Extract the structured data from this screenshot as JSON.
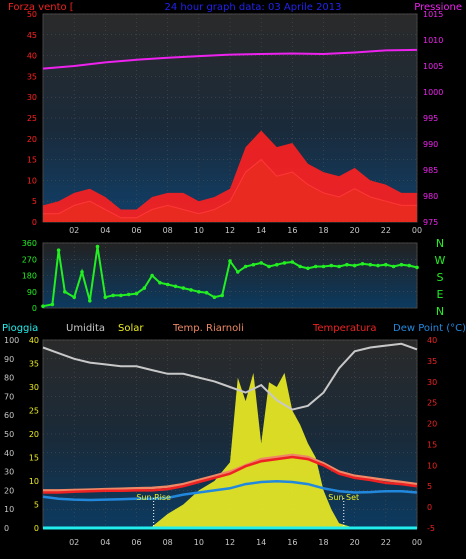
{
  "colors": {
    "wind": "#ff2020",
    "gust": "#ffffff",
    "windAvg": "#228822",
    "pressure": "#ee22ee",
    "direction": "#22ee22",
    "humidity": "#c8c8c8",
    "solar": "#eeee22",
    "temperature": "#ee2222",
    "apparent": "#ee8866",
    "dewpoint": "#2288dd",
    "rain": "#22eeee",
    "title": "#2222ee",
    "hourLabel": "#c8c8c8"
  },
  "header": {
    "left": "Forza vento [",
    "center": "24 hour graph data:  03 Aprile 2013",
    "right": "Pressione"
  },
  "compass": [
    "N",
    "W",
    "S",
    "E",
    "N"
  ],
  "legend": {
    "rain": "Pioggia",
    "humidity": "Umidita",
    "solar": "Solar",
    "apparent": "Temp. Riarnoli",
    "temperature": "Temperatura",
    "dewpoint": "Dew Point (°C)"
  },
  "annotations": {
    "sunrise": "Sun Rise",
    "sunset": "Sun Set"
  },
  "hours": [
    "02",
    "04",
    "06",
    "08",
    "10",
    "12",
    "14",
    "16",
    "18",
    "20",
    "22",
    "00"
  ],
  "hour_values": [
    2,
    4,
    6,
    8,
    10,
    12,
    14,
    16,
    18,
    20,
    22,
    24
  ],
  "chart_data": [
    {
      "type": "line",
      "name": "wind-pressure",
      "title": "24 hour graph data:  03 Aprile 2013",
      "x_range": [
        0,
        24
      ],
      "ylabel_left": "Forza vento [",
      "ylim_left": [
        0,
        50
      ],
      "yticks_left": [
        0,
        5,
        10,
        15,
        20,
        25,
        30,
        35,
        40,
        45,
        50
      ],
      "ylabel_right": "Pressione",
      "ylim_right": [
        975,
        1015
      ],
      "yticks_right": [
        975,
        980,
        985,
        990,
        995,
        1000,
        1005,
        1010,
        1015
      ],
      "series": [
        {
          "name": "Pressione",
          "axis": "right",
          "x": [
            0,
            2,
            4,
            6,
            8,
            10,
            12,
            14,
            16,
            18,
            20,
            22,
            24
          ],
          "values": [
            1004.5,
            1005.0,
            1005.7,
            1006.2,
            1006.6,
            1006.9,
            1007.2,
            1007.3,
            1007.4,
            1007.3,
            1007.6,
            1008.0,
            1008.1
          ]
        },
        {
          "name": "wind-speed",
          "axis": "left",
          "x": [
            0,
            1,
            2,
            3,
            4,
            5,
            6,
            7,
            8,
            9,
            10,
            11,
            12,
            13,
            14,
            15,
            16,
            17,
            18,
            19,
            20,
            21,
            22,
            23,
            24
          ],
          "values": [
            2,
            2,
            4,
            5,
            3,
            1,
            1,
            3,
            4,
            3,
            2,
            3,
            5,
            12,
            15,
            11,
            12,
            9,
            7,
            6,
            8,
            6,
            5,
            4,
            4
          ]
        },
        {
          "name": "wind-gust",
          "axis": "left",
          "x": [
            0,
            1,
            2,
            3,
            4,
            5,
            6,
            7,
            8,
            9,
            10,
            11,
            12,
            13,
            14,
            15,
            16,
            17,
            18,
            19,
            20,
            21,
            22,
            23,
            24
          ],
          "values": [
            4,
            5,
            7,
            8,
            6,
            3,
            3,
            6,
            7,
            7,
            5,
            6,
            8,
            18,
            22,
            18,
            19,
            14,
            12,
            11,
            13,
            10,
            9,
            7,
            7
          ]
        }
      ]
    },
    {
      "type": "scatter",
      "name": "wind-direction",
      "x_range": [
        0,
        24
      ],
      "ylim": [
        0,
        360
      ],
      "yticks": [
        0,
        90,
        180,
        270,
        360
      ],
      "x": [
        0,
        0.6,
        1,
        1.4,
        2,
        2.5,
        3,
        3.5,
        4,
        4.5,
        5,
        5.5,
        6,
        6.5,
        7,
        7.5,
        8,
        8.5,
        9,
        9.5,
        10,
        10.5,
        11,
        11.5,
        12,
        12.5,
        13,
        13.5,
        14,
        14.5,
        15,
        15.5,
        16,
        16.5,
        17,
        17.5,
        18,
        18.5,
        19,
        19.5,
        20,
        20.5,
        21,
        21.5,
        22,
        22.5,
        23,
        23.5,
        24
      ],
      "values": [
        10,
        20,
        320,
        90,
        60,
        200,
        40,
        340,
        60,
        70,
        70,
        75,
        80,
        110,
        180,
        140,
        130,
        120,
        110,
        100,
        90,
        85,
        60,
        70,
        260,
        200,
        230,
        240,
        250,
        230,
        240,
        250,
        255,
        230,
        220,
        230,
        230,
        235,
        230,
        240,
        235,
        245,
        240,
        235,
        240,
        230,
        240,
        235,
        225
      ]
    },
    {
      "type": "line",
      "name": "temperature-humidity",
      "x_range": [
        0,
        24
      ],
      "ylim_left": [
        0,
        100
      ],
      "yticks_left": [
        0,
        10,
        20,
        30,
        40,
        50,
        60,
        70,
        80,
        90,
        100
      ],
      "ylim_solar": [
        0,
        40
      ],
      "yticks_solar": [
        0,
        5,
        10,
        15,
        20,
        25,
        30,
        35,
        40
      ],
      "ylim_right": [
        -5,
        40
      ],
      "yticks_right": [
        -5,
        0,
        5,
        10,
        15,
        20,
        25,
        30,
        35,
        40
      ],
      "sunrise_hour": 7.1,
      "sunset_hour": 19.3,
      "series": [
        {
          "name": "Umidita",
          "axis": "left",
          "x": [
            0,
            1,
            2,
            3,
            4,
            5,
            6,
            7,
            8,
            9,
            10,
            11,
            12,
            13,
            14,
            15,
            16,
            17,
            18,
            19,
            20,
            21,
            22,
            23,
            24
          ],
          "values": [
            96,
            93,
            90,
            88,
            87,
            86,
            86,
            84,
            82,
            82,
            80,
            78,
            75,
            72,
            76,
            68,
            63,
            65,
            72,
            85,
            94,
            96,
            97,
            98,
            95
          ]
        },
        {
          "name": "Temperatura",
          "axis": "right",
          "x": [
            0,
            1,
            2,
            3,
            4,
            5,
            6,
            7,
            8,
            9,
            10,
            11,
            12,
            13,
            14,
            15,
            16,
            17,
            18,
            19,
            20,
            21,
            22,
            23,
            24
          ],
          "values": [
            3.5,
            3.5,
            3.7,
            3.8,
            3.9,
            3.9,
            4.0,
            4.0,
            4.3,
            5.0,
            6.0,
            7.0,
            8.0,
            9.8,
            11.0,
            11.5,
            12.0,
            11.5,
            10.0,
            8.0,
            7.0,
            6.5,
            5.8,
            5.5,
            5.0
          ]
        },
        {
          "name": "Temp. Riarnoli",
          "axis": "right",
          "x": [
            0,
            1,
            2,
            3,
            4,
            5,
            6,
            7,
            8,
            9,
            10,
            11,
            12,
            13,
            14,
            15,
            16,
            17,
            18,
            19,
            20,
            21,
            22,
            23,
            24
          ],
          "values": [
            4.0,
            4.0,
            4.1,
            4.2,
            4.3,
            4.4,
            4.5,
            4.6,
            4.9,
            5.5,
            6.5,
            7.5,
            8.5,
            10.0,
            11.5,
            12.0,
            12.5,
            12.0,
            10.5,
            8.5,
            7.5,
            7.0,
            6.5,
            6.0,
            5.5
          ]
        },
        {
          "name": "Dew Point (°C)",
          "axis": "right",
          "x": [
            0,
            1,
            2,
            3,
            4,
            5,
            6,
            7,
            8,
            9,
            10,
            11,
            12,
            13,
            14,
            15,
            16,
            17,
            18,
            19,
            20,
            21,
            22,
            23,
            24
          ],
          "values": [
            2.5,
            2.0,
            1.8,
            1.7,
            1.8,
            1.9,
            2.0,
            2.0,
            2.2,
            3.0,
            3.5,
            4.0,
            4.5,
            5.5,
            6.0,
            6.2,
            6.0,
            5.5,
            4.5,
            3.8,
            3.5,
            3.6,
            3.8,
            3.8,
            3.5
          ]
        },
        {
          "name": "Solar",
          "axis": "solar",
          "x": [
            0,
            6,
            7,
            8,
            9,
            10,
            11,
            12,
            12.5,
            13,
            13.5,
            14,
            14.5,
            15,
            15.5,
            16,
            16.5,
            17,
            17.5,
            18,
            18.5,
            19,
            20,
            24
          ],
          "values": [
            0,
            0,
            0.3,
            3,
            5,
            8,
            10,
            14,
            32,
            27,
            33,
            18,
            31,
            30,
            33,
            25,
            22,
            18,
            15,
            8,
            4,
            1,
            0,
            0
          ]
        },
        {
          "name": "Pioggia",
          "axis": "left",
          "x": [
            0,
            24
          ],
          "values": [
            0,
            0
          ]
        }
      ]
    }
  ]
}
